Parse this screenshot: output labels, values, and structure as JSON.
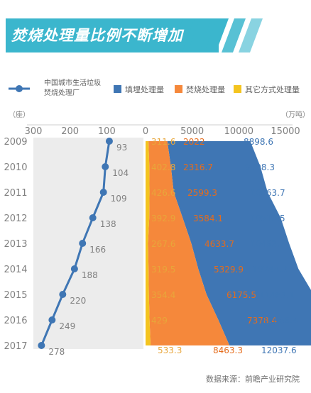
{
  "title": "焚烧处理量比例不断增加",
  "source": "数据来源：前瞻产业研究院",
  "chart_data": [
    {
      "type": "line",
      "series": [
        {
          "name": "中国城市生活垃圾焚烧处理厂",
          "values": [
            93,
            104,
            109,
            138,
            166,
            188,
            220,
            249,
            278
          ]
        }
      ],
      "y": [
        "2009",
        "2010",
        "2011",
        "2012",
        "2013",
        "2014",
        "2015",
        "2016",
        "2017"
      ],
      "xunit": "（座）",
      "xlim": [
        300,
        0
      ],
      "xticks": [
        300,
        200,
        100
      ],
      "color": "#3f76b4"
    },
    {
      "type": "area",
      "stacked": true,
      "y": [
        "2009",
        "2010",
        "2011",
        "2012",
        "2013",
        "2014",
        "2015",
        "2016",
        "2017"
      ],
      "series": [
        {
          "name": "其它方式处理量",
          "values": [
            311.6,
            402.8,
            426.6,
            392.9,
            267.6,
            319.5,
            354.4,
            429,
            533.3
          ],
          "color": "#f4c41f"
        },
        {
          "name": "焚烧处理量",
          "values": [
            2022,
            2316.7,
            2599.3,
            3584.1,
            4633.7,
            5329.9,
            6175.5,
            7378.4,
            8463.3
          ],
          "color": "#f5883b"
        },
        {
          "name": "填埋处理量",
          "values": [
            8898.6,
            9598.3,
            10063.7,
            10512.5,
            10492.7,
            10744.3,
            11483.1,
            11866.4,
            12037.6
          ],
          "color": "#3f76b4"
        }
      ],
      "xunit": "（万吨）",
      "xlim": [
        0,
        15000
      ],
      "xticks": [
        0,
        5000,
        10000,
        15000
      ]
    }
  ]
}
